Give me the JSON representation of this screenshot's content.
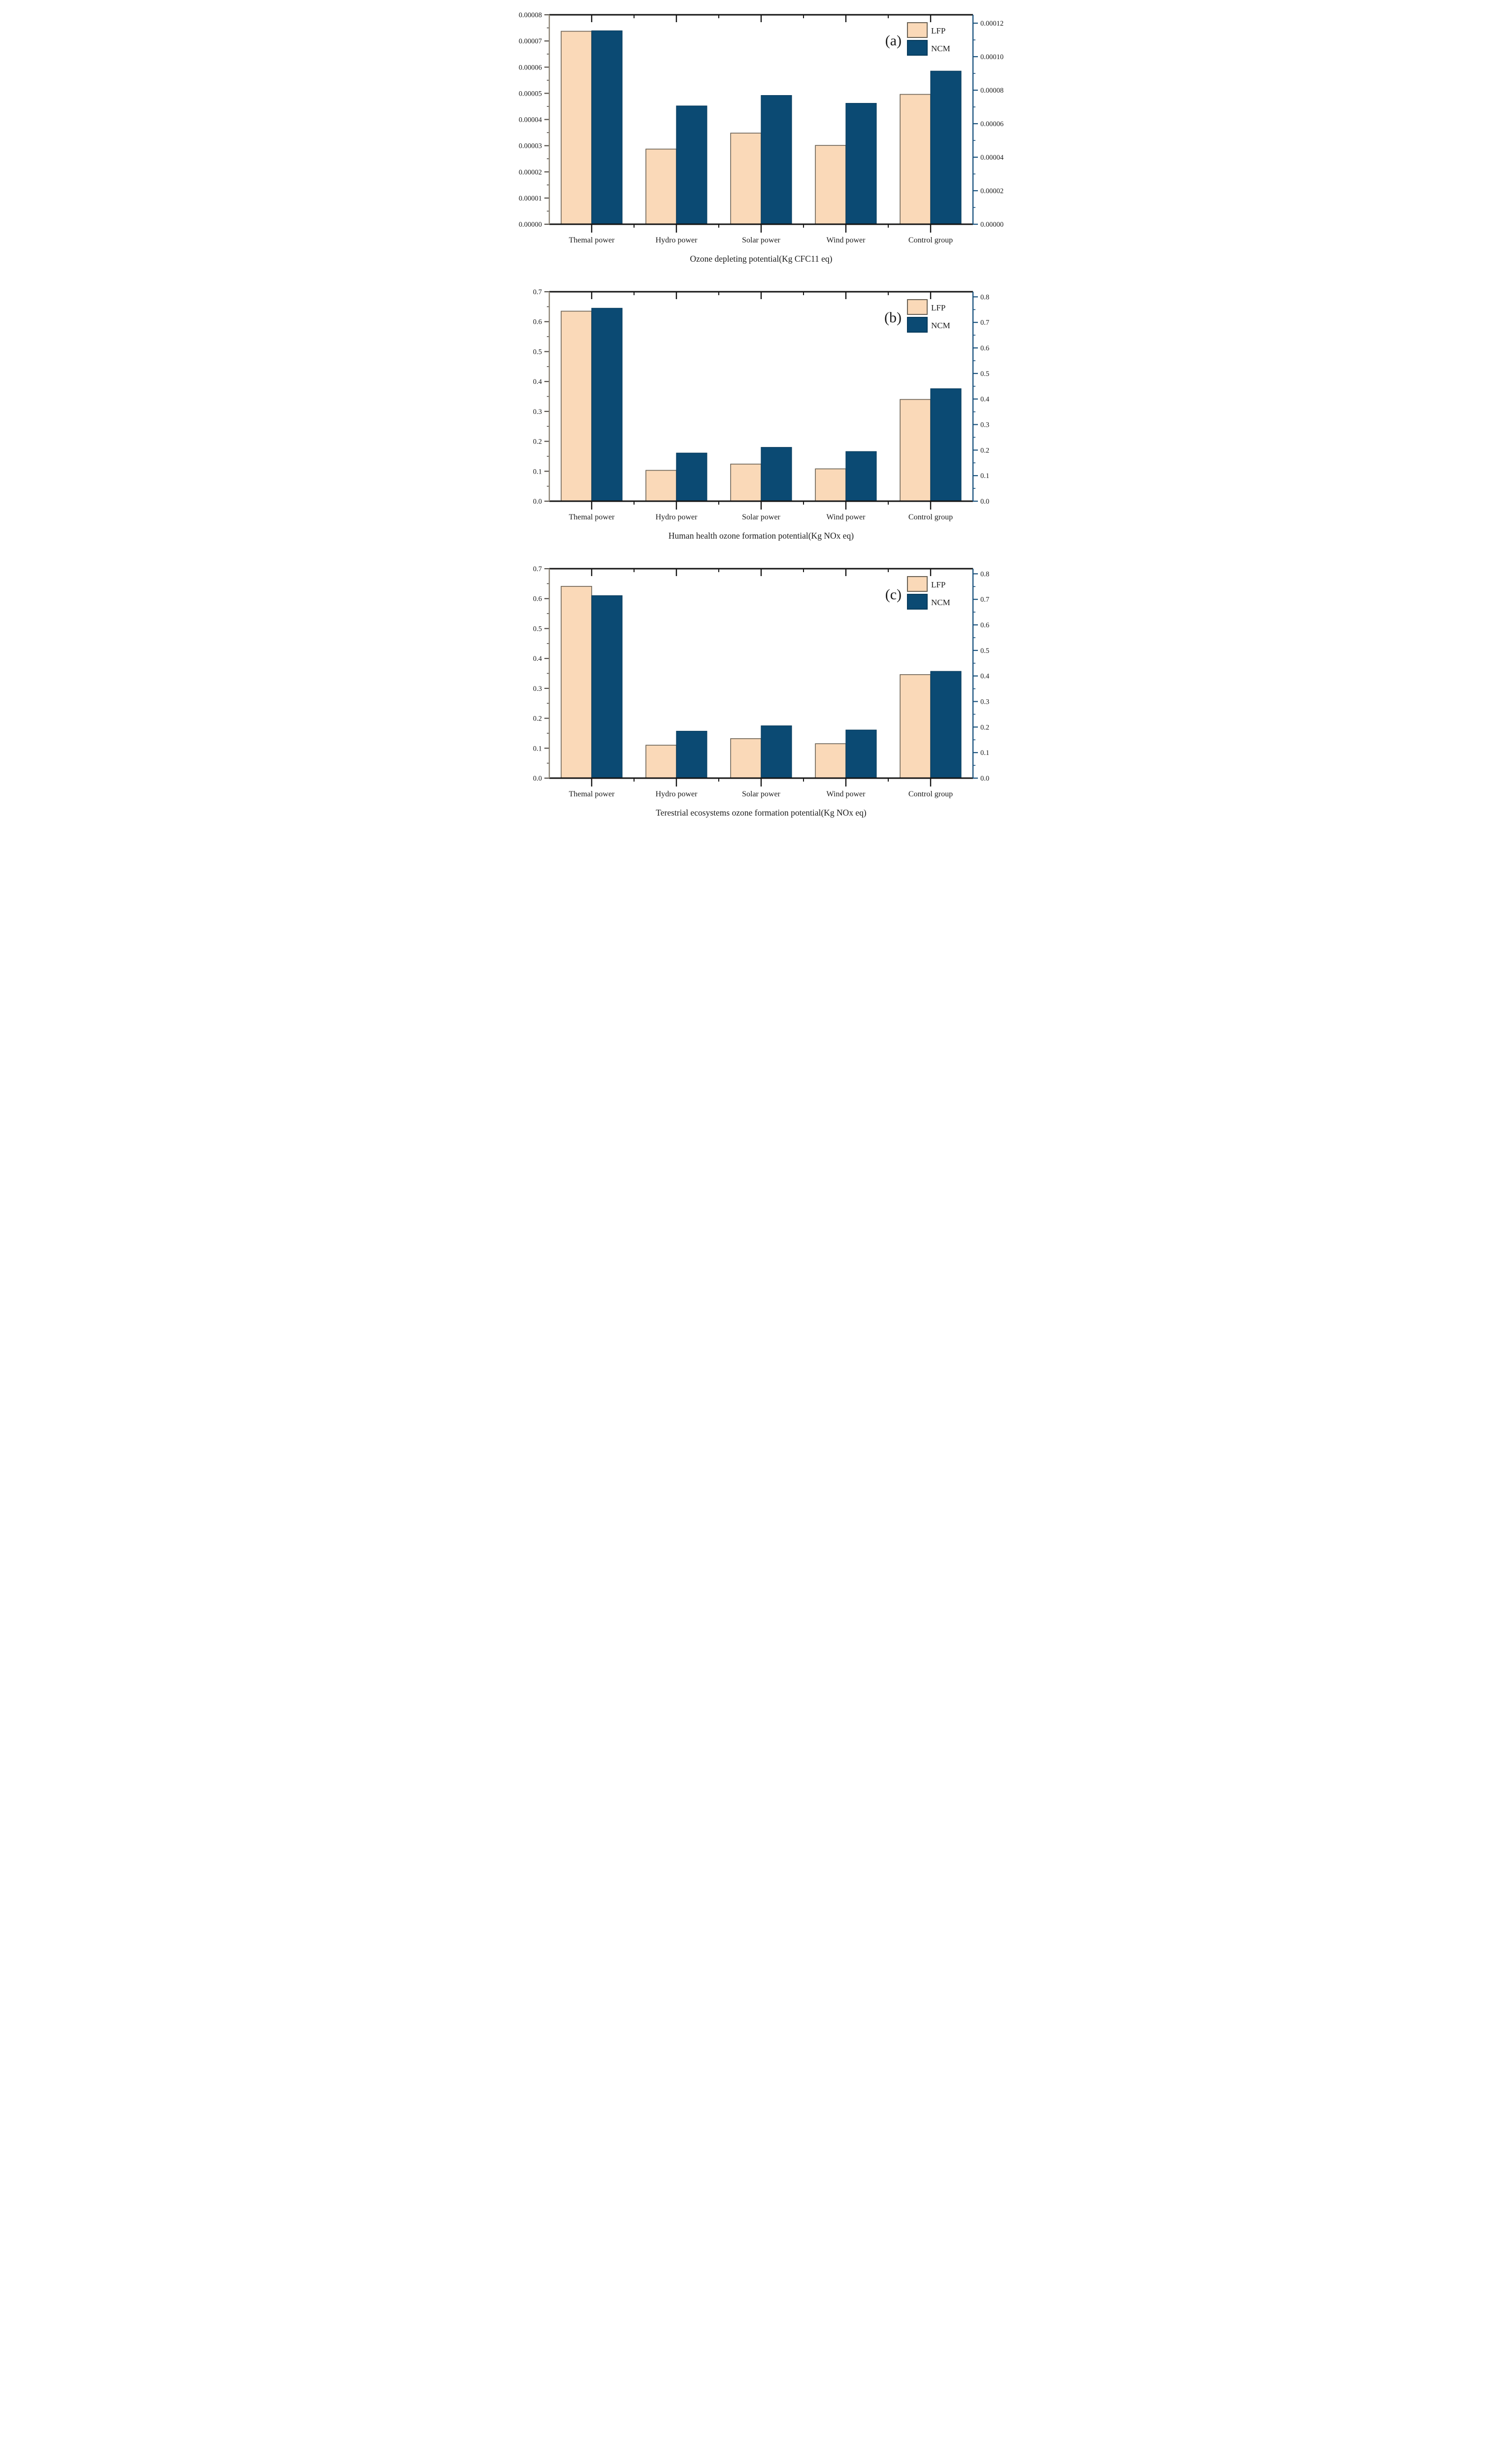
{
  "figure": {
    "background": "#ffffff",
    "series_names": [
      "LFP",
      "NCM"
    ],
    "colors": {
      "lfp_fill": "#FAD9B8",
      "lfp_edge": "#6B6255",
      "ncm_fill": "#0B4A73",
      "ncm_edge": "#083B5C",
      "left_spine": "#8C8374",
      "left_tick": "#55504A",
      "right_spine": "#1B537E",
      "top_bottom_spine": "#141414",
      "text": "#1A1A1A"
    }
  },
  "chart_data": [
    {
      "id": "a",
      "panel_label": "(a)",
      "type": "bar",
      "title": "Ozone depleting potential(Kg CFC11 eq)",
      "categories": [
        "Themal power",
        "Hydro power",
        "Solar power",
        "Wind power",
        "Control group"
      ],
      "series": [
        {
          "name": "LFP",
          "values": [
            7.37e-05,
            2.87e-05,
            3.48e-05,
            3.01e-05,
            4.96e-05
          ]
        },
        {
          "name": "NCM",
          "values": [
            7.39e-05,
            4.52e-05,
            4.92e-05,
            4.62e-05,
            5.85e-05
          ]
        }
      ],
      "left_axis": {
        "min": 0,
        "max": 8e-05,
        "label_step": 1e-05,
        "minor_step": 5e-06,
        "decimals": 5
      },
      "right_axis": {
        "min": 0,
        "max": 0.000125,
        "label_step": 2e-05,
        "minor_step": 1e-05,
        "decimals": 5
      },
      "legend_position": "top-right",
      "grid": false
    },
    {
      "id": "b",
      "panel_label": "(b)",
      "type": "bar",
      "title": "Human health ozone formation potential(Kg NOx eq)",
      "categories": [
        "Themal power",
        "Hydro power",
        "Solar power",
        "Wind power",
        "Control group"
      ],
      "series": [
        {
          "name": "LFP",
          "values": [
            0.635,
            0.103,
            0.124,
            0.108,
            0.34
          ]
        },
        {
          "name": "NCM",
          "values": [
            0.645,
            0.161,
            0.18,
            0.166,
            0.376
          ]
        }
      ],
      "left_axis": {
        "min": 0,
        "max": 0.7,
        "label_step": 0.1,
        "minor_step": 0.05,
        "decimals": 1
      },
      "right_axis": {
        "min": 0,
        "max": 0.82,
        "label_step": 0.1,
        "minor_step": 0.05,
        "decimals": 1
      },
      "legend_position": "top-right",
      "grid": false
    },
    {
      "id": "c",
      "panel_label": "(c)",
      "type": "bar",
      "title": "Terestrial ecosystems ozone formation potential(Kg NOx eq)",
      "categories": [
        "Themal power",
        "Hydro power",
        "Solar power",
        "Wind power",
        "Control group"
      ],
      "series": [
        {
          "name": "LFP",
          "values": [
            0.641,
            0.11,
            0.132,
            0.115,
            0.346
          ]
        },
        {
          "name": "NCM",
          "values": [
            0.61,
            0.157,
            0.175,
            0.161,
            0.357
          ]
        }
      ],
      "left_axis": {
        "min": 0,
        "max": 0.7,
        "label_step": 0.1,
        "minor_step": 0.05,
        "decimals": 1
      },
      "right_axis": {
        "min": 0,
        "max": 0.82,
        "label_step": 0.1,
        "minor_step": 0.05,
        "decimals": 1
      },
      "legend_position": "top-right",
      "grid": false
    }
  ]
}
